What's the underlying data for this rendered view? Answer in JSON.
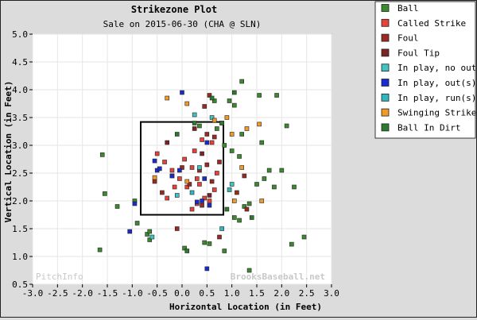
{
  "chart_data": {
    "type": "scatter",
    "title": "Strikezone Plot",
    "subtitle": "Sale on 2015-06-30 (CHA @ SLN)",
    "xlabel": "Horizontal Location (in Feet)",
    "ylabel": "Vertical Location (in Feet)",
    "xlim": [
      -3.0,
      3.0
    ],
    "ylim": [
      0.5,
      5.0
    ],
    "xticks": [
      "-3.0",
      "-2.5",
      "-2.0",
      "-1.5",
      "-1.0",
      "-0.5",
      "0.0",
      "0.5",
      "1.0",
      "1.5",
      "2.0",
      "2.5",
      "3.0"
    ],
    "yticks": [
      "0.5",
      "1.0",
      "1.5",
      "2.0",
      "2.5",
      "3.0",
      "3.5",
      "4.0",
      "4.5",
      "5.0"
    ],
    "grid": true,
    "legend_position": "right",
    "strike_zone": {
      "x": [
        -0.83,
        0.83
      ],
      "y": [
        1.75,
        3.42
      ]
    },
    "watermarks": {
      "left": "PitchInfo",
      "right": "BrooksBaseball.net"
    },
    "series": [
      {
        "name": "Ball",
        "color": "#3b8a2e",
        "points": [
          [
            -1.6,
            2.83
          ],
          [
            -1.55,
            2.13
          ],
          [
            -1.65,
            1.12
          ],
          [
            -1.3,
            1.9
          ],
          [
            -0.95,
            2.0
          ],
          [
            -0.9,
            1.6
          ],
          [
            -0.7,
            1.4
          ],
          [
            -0.65,
            1.45
          ],
          [
            -0.65,
            1.3
          ],
          [
            0.05,
            1.15
          ],
          [
            0.45,
            1.25
          ],
          [
            0.55,
            1.23
          ],
          [
            0.85,
            1.1
          ],
          [
            1.05,
            1.7
          ],
          [
            1.15,
            1.65
          ],
          [
            1.25,
            1.9
          ],
          [
            1.35,
            1.95
          ],
          [
            1.5,
            2.3
          ],
          [
            1.65,
            2.4
          ],
          [
            1.75,
            2.55
          ],
          [
            1.85,
            2.25
          ],
          [
            2.0,
            2.55
          ],
          [
            2.25,
            2.25
          ],
          [
            2.2,
            1.22
          ],
          [
            2.45,
            1.35
          ],
          [
            1.35,
            0.75
          ],
          [
            2.1,
            3.35
          ],
          [
            1.9,
            3.9
          ],
          [
            1.55,
            3.9
          ],
          [
            1.2,
            4.15
          ],
          [
            0.65,
            3.8
          ],
          [
            0.95,
            3.8
          ],
          [
            1.05,
            3.72
          ],
          [
            0.35,
            3.35
          ],
          [
            0.7,
            3.3
          ],
          [
            0.85,
            3.0
          ],
          [
            1.0,
            2.9
          ],
          [
            1.15,
            2.8
          ],
          [
            1.2,
            3.2
          ],
          [
            1.6,
            3.05
          ]
        ]
      },
      {
        "name": "Called Strike",
        "color": "#e8413a",
        "points": [
          [
            -0.5,
            2.85
          ],
          [
            -0.35,
            2.7
          ],
          [
            -0.2,
            2.55
          ],
          [
            -0.05,
            2.4
          ],
          [
            0.1,
            2.25
          ],
          [
            0.2,
            2.6
          ],
          [
            0.3,
            2.4
          ],
          [
            0.45,
            2.05
          ],
          [
            0.55,
            2.0
          ],
          [
            0.65,
            2.2
          ],
          [
            0.2,
            1.85
          ],
          [
            0.3,
            1.95
          ],
          [
            -0.3,
            2.05
          ],
          [
            -0.15,
            2.25
          ],
          [
            0.05,
            2.75
          ],
          [
            0.25,
            2.9
          ],
          [
            0.4,
            3.1
          ],
          [
            0.6,
            3.05
          ],
          [
            0.7,
            2.5
          ],
          [
            0.35,
            2.3
          ]
        ]
      },
      {
        "name": "Foul",
        "color": "#9a2a22",
        "points": [
          [
            -0.55,
            2.35
          ],
          [
            -0.4,
            2.15
          ],
          [
            -0.2,
            2.45
          ],
          [
            0.0,
            2.6
          ],
          [
            0.15,
            2.3
          ],
          [
            0.35,
            2.55
          ],
          [
            0.5,
            2.65
          ],
          [
            0.6,
            2.35
          ],
          [
            0.75,
            2.7
          ],
          [
            0.5,
            3.2
          ],
          [
            0.65,
            3.15
          ],
          [
            0.8,
            3.4
          ],
          [
            0.45,
            3.7
          ],
          [
            0.55,
            3.9
          ],
          [
            0.4,
            1.92
          ],
          [
            -0.1,
            1.5
          ],
          [
            0.75,
            1.35
          ],
          [
            1.1,
            2.15
          ],
          [
            1.3,
            1.85
          ],
          [
            1.25,
            2.45
          ]
        ]
      },
      {
        "name": "Foul Tip",
        "color": "#7a2424",
        "points": [
          [
            0.25,
            3.3
          ],
          [
            0.4,
            2.85
          ],
          [
            -0.3,
            3.05
          ],
          [
            0.55,
            2.1
          ]
        ]
      },
      {
        "name": "In play, no out",
        "color": "#3fc4c4",
        "points": [
          [
            -0.1,
            2.1
          ],
          [
            0.35,
            2.6
          ],
          [
            0.6,
            3.5
          ],
          [
            1.0,
            2.3
          ],
          [
            -0.6,
            1.35
          ],
          [
            0.25,
            3.55
          ]
        ]
      },
      {
        "name": "In play, out(s)",
        "color": "#1a2bd0",
        "points": [
          [
            -0.55,
            2.72
          ],
          [
            -0.5,
            2.55
          ],
          [
            -0.45,
            2.58
          ],
          [
            -0.2,
            2.45
          ],
          [
            0.0,
            3.95
          ],
          [
            0.3,
            1.98
          ],
          [
            0.4,
            2.0
          ],
          [
            0.55,
            1.92
          ],
          [
            0.5,
            0.78
          ],
          [
            -0.95,
            1.95
          ],
          [
            -0.05,
            2.55
          ],
          [
            0.45,
            2.4
          ],
          [
            -1.05,
            1.45
          ],
          [
            0.5,
            3.05
          ]
        ]
      },
      {
        "name": "In play, run(s)",
        "color": "#2fb7c0",
        "points": [
          [
            0.2,
            2.15
          ],
          [
            0.95,
            2.2
          ],
          [
            0.8,
            1.5
          ]
        ]
      },
      {
        "name": "Swinging Strike",
        "color": "#f29a28",
        "points": [
          [
            -0.3,
            3.85
          ],
          [
            0.1,
            3.75
          ],
          [
            0.65,
            3.45
          ],
          [
            0.9,
            3.5
          ],
          [
            1.0,
            3.2
          ],
          [
            1.2,
            2.6
          ],
          [
            1.6,
            2.0
          ],
          [
            1.3,
            3.3
          ],
          [
            1.55,
            3.38
          ],
          [
            1.05,
            2.0
          ],
          [
            0.1,
            2.35
          ],
          [
            -0.55,
            2.42
          ]
        ]
      },
      {
        "name": "Ball In Dirt",
        "color": "#2c7a2c",
        "points": [
          [
            -0.1,
            3.2
          ],
          [
            0.25,
            3.4
          ],
          [
            0.6,
            3.85
          ],
          [
            0.8,
            3.4
          ],
          [
            1.05,
            3.95
          ],
          [
            1.4,
            1.7
          ],
          [
            0.1,
            1.1
          ],
          [
            0.9,
            1.85
          ]
        ]
      }
    ]
  }
}
